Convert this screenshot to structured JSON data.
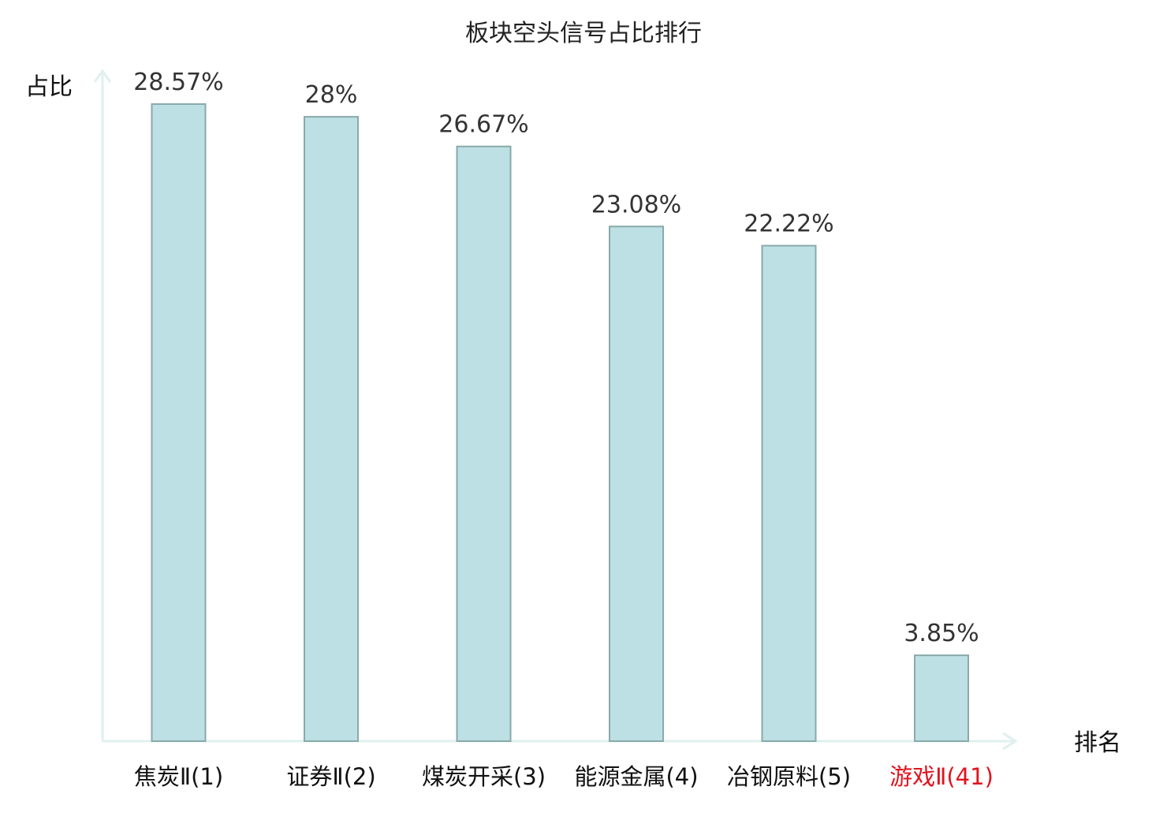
{
  "chart_data": {
    "type": "bar",
    "title": "板块空头信号占比排行",
    "ylabel": "占比",
    "xlabel": "排名",
    "categories": [
      "焦炭Ⅱ(1)",
      "证券Ⅱ(2)",
      "煤炭开采(3)",
      "能源金属(4)",
      "冶钢原料(5)",
      "游戏Ⅱ(41)"
    ],
    "values": [
      28.57,
      28,
      26.67,
      23.08,
      22.22,
      3.85
    ],
    "value_labels": [
      "28.57%",
      "28%",
      "26.67%",
      "23.08%",
      "22.22%",
      "3.85%"
    ],
    "highlight_index": 5,
    "ylim": [
      0,
      30
    ],
    "grid": false,
    "colors": {
      "bar_fill": "#bce0e3",
      "bar_stroke": "#8aa9ab",
      "axis": "#dff0ee",
      "highlight_text": "#e0141e",
      "text": "#111111"
    }
  }
}
